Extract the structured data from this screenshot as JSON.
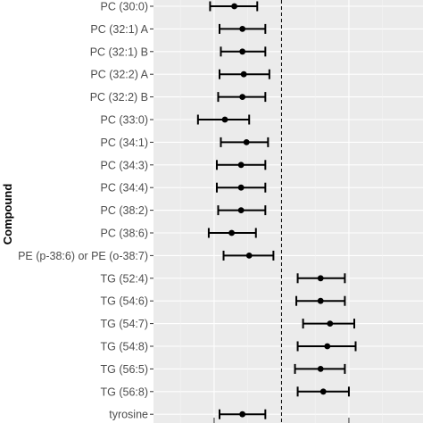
{
  "chart_data": {
    "type": "forest",
    "ylabel": "Compound",
    "xlabel": "",
    "reference_line": 0,
    "xlim": [
      -0.95,
      1.05
    ],
    "grid": true,
    "categories": [
      "PC (30:0)",
      "PC (32:1) A",
      "PC (32:1) B",
      "PC (32:2) A",
      "PC (32:2) B",
      "PC (33:0)",
      "PC (34:1)",
      "PC (34:3)",
      "PC (34:4)",
      "PC (38:2)",
      "PC (38:6)",
      "PE (p-38:6) or PE (o-38:7)",
      "TG (52:4)",
      "TG (54:6)",
      "TG (54:7)",
      "TG (54:8)",
      "TG (56:5)",
      "TG (56:8)",
      "tyrosine"
    ],
    "estimates": [
      -0.35,
      -0.29,
      -0.29,
      -0.28,
      -0.29,
      -0.42,
      -0.26,
      -0.3,
      -0.3,
      -0.3,
      -0.37,
      -0.24,
      0.29,
      0.29,
      0.36,
      0.34,
      0.29,
      0.31,
      -0.29
    ],
    "lower": [
      -0.53,
      -0.46,
      -0.45,
      -0.46,
      -0.47,
      -0.62,
      -0.45,
      -0.48,
      -0.48,
      -0.47,
      -0.54,
      -0.43,
      0.12,
      0.11,
      0.16,
      0.12,
      0.1,
      0.12,
      -0.46
    ],
    "upper": [
      -0.18,
      -0.12,
      -0.12,
      -0.09,
      -0.12,
      -0.24,
      -0.1,
      -0.12,
      -0.12,
      -0.12,
      -0.19,
      -0.06,
      0.47,
      0.47,
      0.54,
      0.55,
      0.47,
      0.5,
      -0.12
    ]
  },
  "colors": {
    "panel": "#ebebeb",
    "grid_major": "#ffffff",
    "grid_minor": "#f5f5f5",
    "mark": "#000000",
    "tick_text": "#4d4d4d"
  }
}
